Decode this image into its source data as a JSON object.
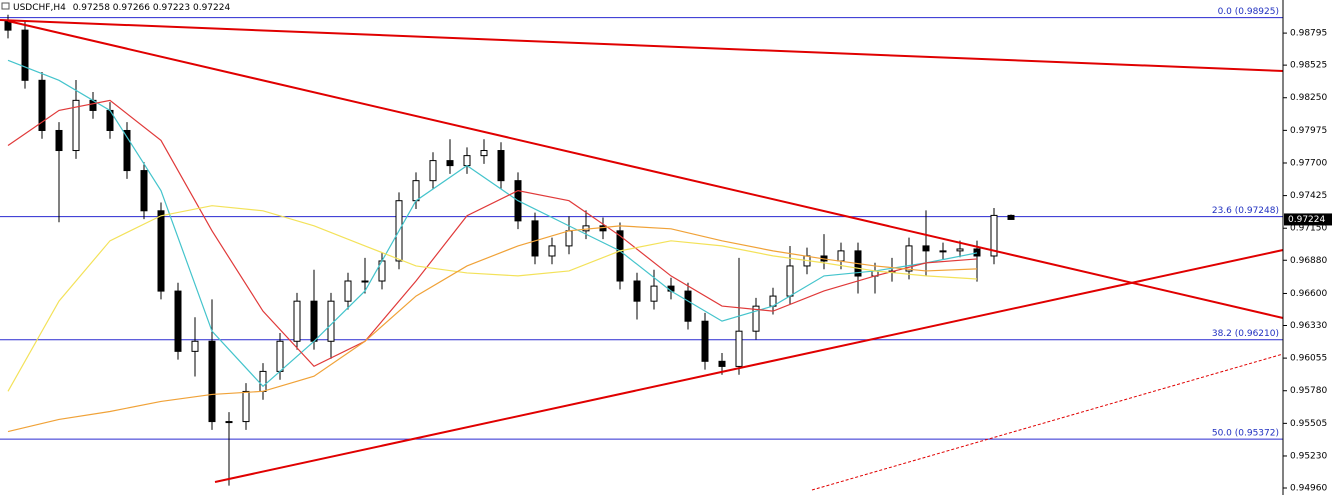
{
  "chart_data": {
    "type": "candlestick",
    "title": "USDCHF,H4",
    "open": [
      0.989,
      0.9882,
      0.98397,
      0.97974,
      0.97805,
      0.98228,
      0.98143,
      0.97974,
      0.97636,
      0.97297,
      0.9662,
      0.96112,
      0.96197,
      0.9552,
      0.9552,
      0.95774,
      0.95943,
      0.96197,
      0.96535,
      0.96197,
      0.96535,
      0.96705,
      0.96705,
      0.96874,
      0.97382,
      0.97551,
      0.9772,
      0.97678,
      0.97762,
      0.97805,
      0.97551,
      0.97212,
      0.96916,
      0.97001,
      0.97128,
      0.9717,
      0.97128,
      0.96705,
      0.96535,
      0.96662,
      0.9662,
      0.96366,
      0.96028,
      0.95985,
      0.96282,
      0.96493,
      0.96578,
      0.96832,
      0.96916,
      0.96874,
      0.96959,
      0.96747,
      0.96789,
      0.96789,
      0.97001,
      0.96959,
      0.96959,
      0.96975,
      0.96916,
      0.97258
    ],
    "high": [
      0.9895,
      0.9889,
      0.98467,
      0.98044,
      0.984,
      0.98298,
      0.98213,
      0.98044,
      0.97706,
      0.97367,
      0.9669,
      0.964,
      0.9655,
      0.956,
      0.95844,
      0.96013,
      0.96267,
      0.96605,
      0.968,
      0.96605,
      0.96775,
      0.969,
      0.96944,
      0.97452,
      0.97621,
      0.9779,
      0.979,
      0.97832,
      0.979,
      0.97875,
      0.97621,
      0.97282,
      0.97071,
      0.9725,
      0.973,
      0.9724,
      0.97198,
      0.96775,
      0.968,
      0.96732,
      0.9669,
      0.96436,
      0.96098,
      0.969,
      0.96563,
      0.96648,
      0.97,
      0.96986,
      0.971,
      0.97029,
      0.97029,
      0.96859,
      0.969,
      0.97071,
      0.973,
      0.97029,
      0.97045,
      0.97045,
      0.9732,
      0.97266
    ],
    "low": [
      0.9875,
      0.98327,
      0.97904,
      0.972,
      0.97735,
      0.98073,
      0.97904,
      0.97566,
      0.97227,
      0.9655,
      0.96042,
      0.959,
      0.9545,
      0.9498,
      0.9545,
      0.95704,
      0.95873,
      0.96127,
      0.96127,
      0.9605,
      0.96465,
      0.966,
      0.96635,
      0.96804,
      0.97312,
      0.97481,
      0.97608,
      0.97608,
      0.97692,
      0.97481,
      0.97142,
      0.96846,
      0.96846,
      0.96931,
      0.97058,
      0.97058,
      0.96635,
      0.9638,
      0.96465,
      0.9655,
      0.96296,
      0.95958,
      0.95915,
      0.95915,
      0.96212,
      0.96423,
      0.96508,
      0.96762,
      0.96804,
      0.96804,
      0.966,
      0.966,
      0.967,
      0.96719,
      0.9675,
      0.96889,
      0.96905,
      0.967,
      0.96846,
      0.97223
    ],
    "close": [
      0.9882,
      0.98397,
      0.97974,
      0.97805,
      0.98228,
      0.98143,
      0.97974,
      0.97636,
      0.97297,
      0.9662,
      0.96112,
      0.96197,
      0.9552,
      0.9552,
      0.95774,
      0.95943,
      0.96197,
      0.96535,
      0.96197,
      0.96535,
      0.96705,
      0.96705,
      0.96874,
      0.97382,
      0.97551,
      0.9772,
      0.97678,
      0.97762,
      0.97805,
      0.97551,
      0.97212,
      0.96916,
      0.97001,
      0.97128,
      0.9717,
      0.97128,
      0.96705,
      0.96535,
      0.96662,
      0.9662,
      0.96366,
      0.96028,
      0.95985,
      0.96282,
      0.96493,
      0.96578,
      0.96832,
      0.96916,
      0.96874,
      0.96959,
      0.96747,
      0.96789,
      0.96789,
      0.97001,
      0.96959,
      0.96959,
      0.96975,
      0.96916,
      0.97258,
      0.97224
    ],
    "overlays": [
      {
        "color": "#44c4cc",
        "values": [
          0.98566,
          0.98397,
          0.98143,
          0.97467,
          0.96282,
          0.95817,
          0.96197,
          0.96621,
          0.97382,
          0.97678,
          0.97382,
          0.9717,
          0.96959,
          0.96621,
          0.96367,
          0.96494,
          0.96748,
          0.9679,
          0.96858,
          0.96942
        ]
      },
      {
        "color": "#e03a3a",
        "values": [
          0.97847,
          0.98143,
          0.98228,
          0.9789,
          0.97128,
          0.96451,
          0.95986,
          0.96197,
          0.96705,
          0.97255,
          0.97467,
          0.97382,
          0.97086,
          0.96748,
          0.96494,
          0.96451,
          0.96621,
          0.96748,
          0.96858,
          0.96891
        ]
      },
      {
        "color": "#f3e25a",
        "values": [
          0.95775,
          0.96536,
          0.97044,
          0.97255,
          0.9734,
          0.97297,
          0.9717,
          0.97001,
          0.96832,
          0.96773,
          0.96748,
          0.9679,
          0.96959,
          0.97044,
          0.97001,
          0.96917,
          0.96858,
          0.9679,
          0.96748,
          0.96722
        ]
      },
      {
        "color": "#f0a238",
        "values": [
          0.95436,
          0.95538,
          0.95605,
          0.9569,
          0.95749,
          0.95775,
          0.95902,
          0.96197,
          0.96578,
          0.96832,
          0.97001,
          0.97128,
          0.9717,
          0.97145,
          0.97044,
          0.96959,
          0.96891,
          0.96832,
          0.9679,
          0.96807
        ]
      }
    ],
    "levels": [
      {
        "value": 0.98925,
        "label": "0.0 (0.98925)"
      },
      {
        "value": 0.97248,
        "label": "23.6 (0.97248)"
      },
      {
        "value": 0.9621,
        "label": "38.2 (0.96210)"
      },
      {
        "value": 0.95372,
        "label": "50.0 (0.95372)"
      }
    ],
    "ylim": [
      0.94901,
      0.99074
    ],
    "yticks": [
      0.98795,
      0.98525,
      {
        "value": 0.9825,
        "label": "0.98250"
      },
      0.97975,
      {
        "value": 0.977,
        "label": "0.97700"
      },
      0.97425,
      {
        "value": 0.9715,
        "label": "0.97150"
      },
      {
        "value": 0.9688,
        "label": "0.96880"
      },
      {
        "value": 0.966,
        "label": "0.96600"
      },
      {
        "value": 0.9633,
        "label": "0.96330"
      },
      0.96055,
      {
        "value": 0.9578,
        "label": "0.95780"
      },
      0.95505,
      {
        "value": 0.9523,
        "label": "0.95230"
      },
      {
        "value": 0.9496,
        "label": "0.94960"
      }
    ]
  }
}
